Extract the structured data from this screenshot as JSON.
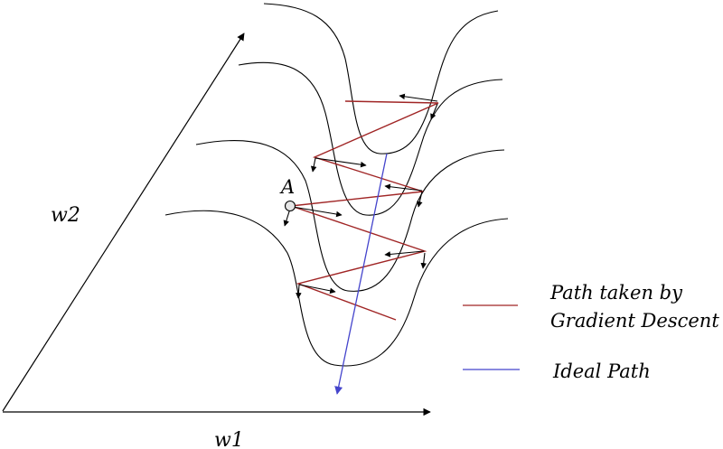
{
  "axes": {
    "x_label": "w1",
    "y_label": "w2"
  },
  "point": {
    "label": "A"
  },
  "legend": {
    "gradient_descent": {
      "line1": "Path taken by",
      "line2": "Gradient Descent",
      "color": "#a02525"
    },
    "ideal": {
      "label": "Ideal Path",
      "color": "#4444cc"
    }
  },
  "colors": {
    "contour": "#000000",
    "axis": "#000000",
    "point_fill": "#e6e6e6"
  }
}
